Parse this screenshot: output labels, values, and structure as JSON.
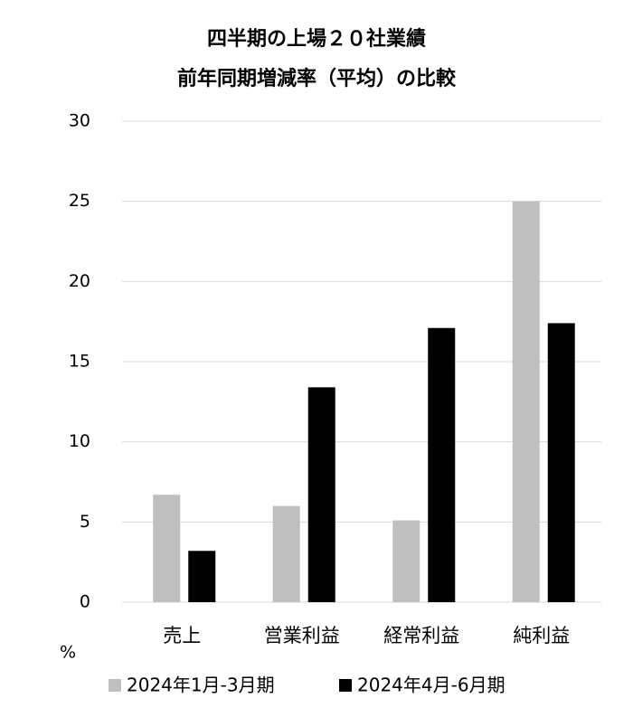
{
  "chart_data": {
    "type": "bar",
    "title_lines": [
      "四半期の上場２０社業績",
      "前年同期増減率（平均）の比較"
    ],
    "unit_label": "%",
    "categories": [
      "売上",
      "営業利益",
      "経常利益",
      "純利益"
    ],
    "series": [
      {
        "name": "2024年1月-3月期",
        "color": "#bfbfbf",
        "values": [
          6.7,
          6.0,
          5.1,
          25.0
        ]
      },
      {
        "name": "2024年4月-6月期",
        "color": "#000000",
        "values": [
          3.2,
          13.4,
          17.1,
          17.4
        ]
      }
    ],
    "ylim": [
      0,
      30
    ],
    "yticks": [
      0,
      5,
      10,
      15,
      20,
      25,
      30
    ],
    "grid": true,
    "legend": "bottom"
  }
}
